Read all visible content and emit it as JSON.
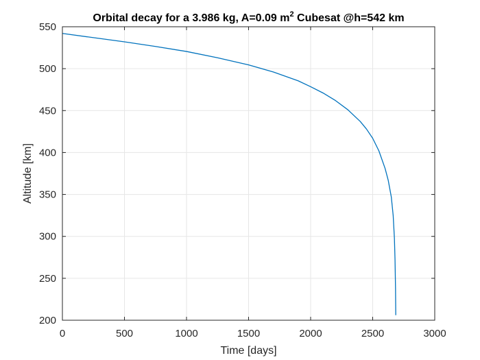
{
  "chart_data": {
    "type": "line",
    "title": {
      "prefix": "Orbital decay for a 3.986 kg, A=0.09 m",
      "superscript": "2",
      "suffix": " Cubesat @h=542 km"
    },
    "xlabel": "Time [days]",
    "ylabel": "Altitude [km]",
    "xlim": [
      0,
      3000
    ],
    "ylim": [
      200,
      550
    ],
    "xticks": [
      0,
      500,
      1000,
      1500,
      2000,
      2500,
      3000
    ],
    "yticks": [
      200,
      250,
      300,
      350,
      400,
      450,
      500,
      550
    ],
    "grid": true,
    "series": [
      {
        "color": "#0072BD",
        "x": [
          0,
          250,
          500,
          750,
          1000,
          1250,
          1500,
          1700,
          1900,
          2000,
          2100,
          2200,
          2300,
          2400,
          2450,
          2500,
          2550,
          2600,
          2625,
          2650,
          2665,
          2675,
          2680,
          2684,
          2686
        ],
        "y": [
          542,
          537,
          532,
          526.5,
          520.5,
          513,
          504.5,
          496,
          485.5,
          478.5,
          471,
          462,
          451,
          437,
          428,
          417,
          402,
          381,
          367,
          347,
          325,
          298,
          272,
          238,
          206
        ]
      }
    ]
  }
}
